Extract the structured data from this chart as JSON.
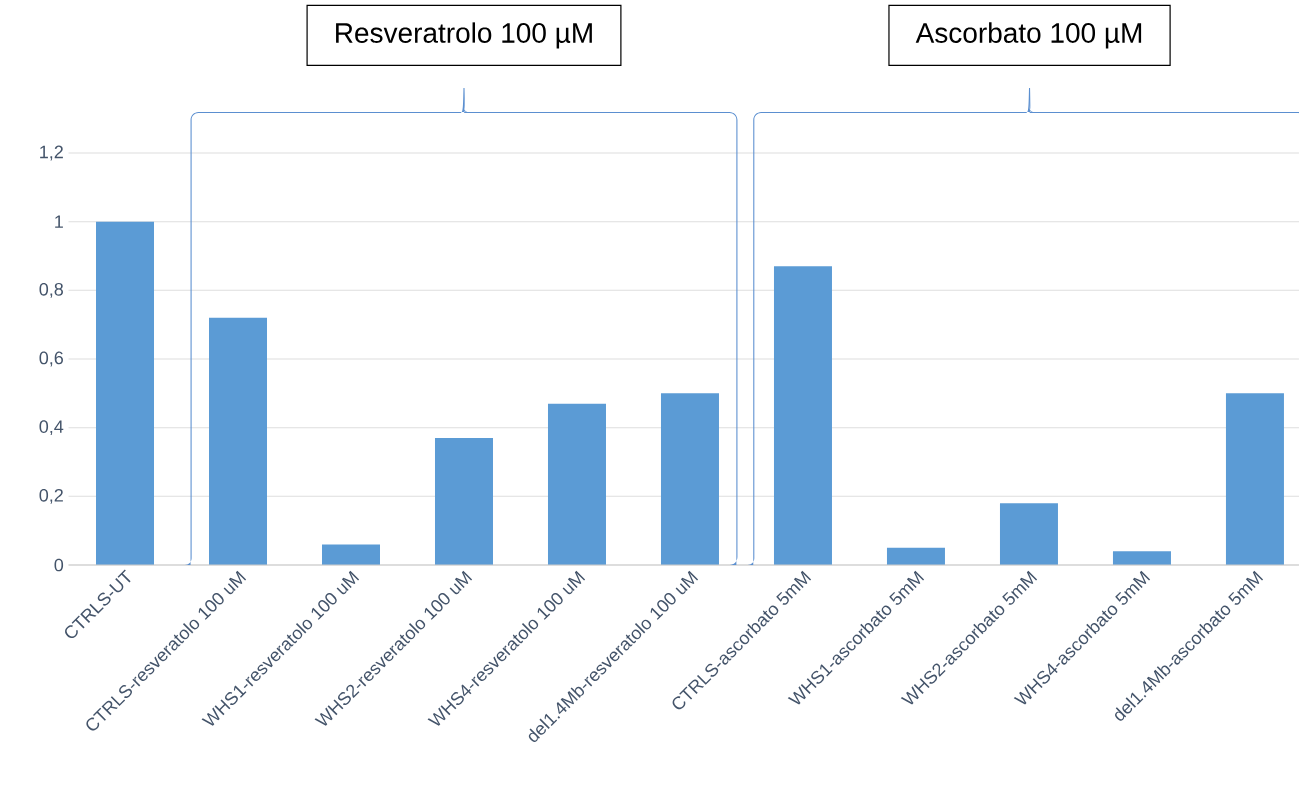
{
  "chart_data": {
    "type": "bar",
    "categories": [
      "CTRLS-UT",
      "CTRLS-resveratolo 100 uM",
      "WHS1-resveratolo 100 uM",
      "WHS2-resveratolo 100 uM",
      "WHS4-resveratolo 100 uM",
      "del1.4Mb-resveratolo 100 uM",
      "CTRLS-ascorbato 5mM",
      "WHS1-ascorbato 5mM",
      "WHS2-ascorbato 5mM",
      "WHS4-ascorbato 5mM",
      "del1.4Mb-ascorbato 5mM"
    ],
    "values": [
      1.0,
      0.72,
      0.06,
      0.37,
      0.47,
      0.5,
      0.87,
      0.05,
      0.18,
      0.04,
      0.5
    ],
    "color": "#5b9bd5",
    "ylim": [
      0,
      1.2
    ],
    "yticks": [
      0,
      {
        "value": 0.2,
        "label": "0,2"
      },
      {
        "value": 0.4,
        "label": "0,4"
      },
      {
        "value": 0.6,
        "label": "0,6"
      },
      {
        "value": 0.8,
        "label": "0,8"
      },
      1,
      {
        "value": 1.2,
        "label": "1,2"
      }
    ],
    "grid": "y",
    "annotations": [
      "Resveratrolo 100 µM",
      "Ascorbato 100 µM"
    ]
  }
}
